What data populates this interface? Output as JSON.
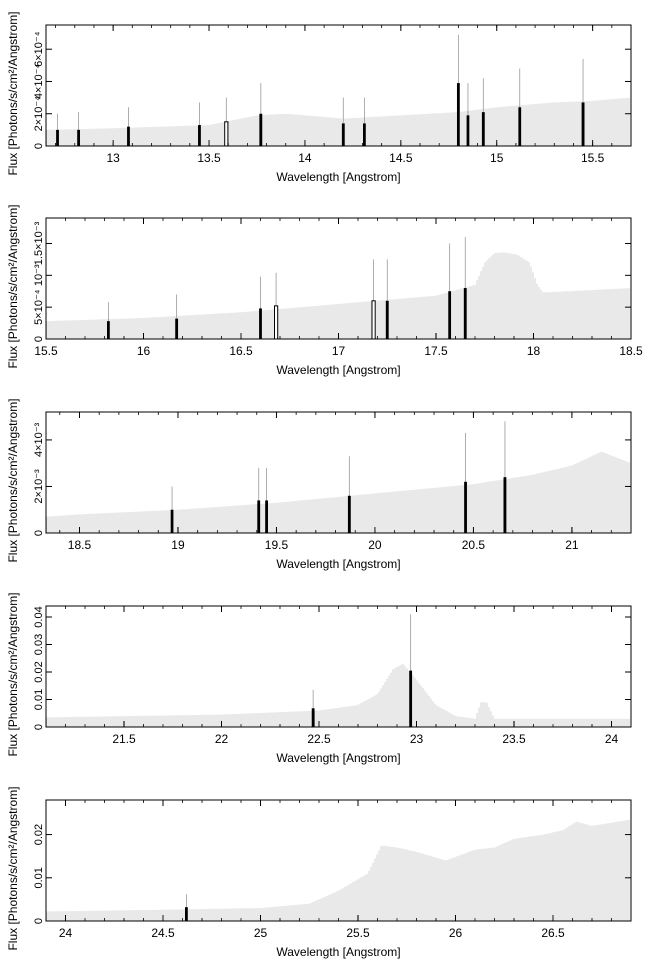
{
  "chart_data": [
    {
      "type": "bar",
      "xlabel": "Wavelength [Angstrom]",
      "ylabel": "Flux [Photons/s/cm²/Angstrom]",
      "xlim": [
        12.65,
        15.7
      ],
      "ylim": [
        0,
        0.00075
      ],
      "xticks": [
        13,
        13.5,
        14,
        14.5,
        15,
        15.5
      ],
      "xticklabels": [
        "13",
        "13.5",
        "14",
        "14.5",
        "15",
        "15.5"
      ],
      "yticks": [
        0,
        0.0002,
        0.0004,
        0.0006
      ],
      "yticklabels": [
        "0",
        "2×10⁻⁴",
        "4×10⁻⁴",
        "6×10⁻⁴"
      ],
      "continuum": {
        "x": [
          12.65,
          13.0,
          13.5,
          13.75,
          13.9,
          14.2,
          14.5,
          14.8,
          15.0,
          15.3,
          15.5,
          15.7
        ],
        "y": [
          0.0001,
          0.00011,
          0.00013,
          0.00019,
          0.0002,
          0.00017,
          0.00019,
          0.00021,
          0.00024,
          0.00027,
          0.00028,
          0.0003
        ]
      },
      "lines": [
        {
          "x": 12.71,
          "y": 0.0001,
          "err": 0.0002,
          "hollow": false
        },
        {
          "x": 12.82,
          "y": 0.0001,
          "err": 0.00021,
          "hollow": false
        },
        {
          "x": 13.08,
          "y": 0.00012,
          "err": 0.00024,
          "hollow": false
        },
        {
          "x": 13.45,
          "y": 0.00013,
          "err": 0.00027,
          "hollow": false
        },
        {
          "x": 13.59,
          "y": 0.00015,
          "err": 0.0003,
          "hollow": true
        },
        {
          "x": 13.77,
          "y": 0.0002,
          "err": 0.00039,
          "hollow": false
        },
        {
          "x": 14.2,
          "y": 0.00014,
          "err": 0.0003,
          "hollow": false
        },
        {
          "x": 14.31,
          "y": 0.00014,
          "err": 0.0003,
          "hollow": false
        },
        {
          "x": 14.8,
          "y": 0.00039,
          "err": 0.00069,
          "hollow": false
        },
        {
          "x": 14.85,
          "y": 0.00019,
          "err": 0.00039,
          "hollow": false
        },
        {
          "x": 14.93,
          "y": 0.00021,
          "err": 0.00042,
          "hollow": false
        },
        {
          "x": 15.12,
          "y": 0.00024,
          "err": 0.00048,
          "hollow": false
        },
        {
          "x": 15.45,
          "y": 0.00027,
          "err": 0.00054,
          "hollow": false
        }
      ]
    },
    {
      "type": "bar",
      "xlabel": "Wavelength [Angstrom]",
      "ylabel": "Flux [Photons/s/cm²/Angstrom]",
      "xlim": [
        15.5,
        18.5
      ],
      "ylim": [
        0,
        0.0019
      ],
      "xticks": [
        15.5,
        16,
        16.5,
        17,
        17.5,
        18,
        18.5
      ],
      "xticklabels": [
        "15.5",
        "16",
        "16.5",
        "17",
        "17.5",
        "18",
        "18.5"
      ],
      "yticks": [
        0,
        0.0005,
        0.001,
        0.0015
      ],
      "yticklabels": [
        "0",
        "5×10⁻⁴",
        "10⁻³",
        "1.5×10⁻³"
      ],
      "continuum": {
        "x": [
          15.5,
          16.0,
          16.5,
          17.0,
          17.5,
          17.7,
          17.75,
          17.8,
          17.85,
          17.92,
          17.98,
          18.02,
          18.05,
          18.5
        ],
        "y": [
          0.00028,
          0.00033,
          0.00042,
          0.00055,
          0.00068,
          0.00085,
          0.0012,
          0.00135,
          0.00136,
          0.00132,
          0.0012,
          0.00085,
          0.00073,
          0.0008
        ]
      },
      "lines": [
        {
          "x": 15.82,
          "y": 0.00028,
          "err": 0.00058,
          "hollow": false
        },
        {
          "x": 16.17,
          "y": 0.00032,
          "err": 0.0007,
          "hollow": false
        },
        {
          "x": 16.6,
          "y": 0.00048,
          "err": 0.00098,
          "hollow": false
        },
        {
          "x": 16.68,
          "y": 0.00052,
          "err": 0.00104,
          "hollow": true
        },
        {
          "x": 17.18,
          "y": 0.0006,
          "err": 0.00125,
          "hollow": true
        },
        {
          "x": 17.25,
          "y": 0.0006,
          "err": 0.00125,
          "hollow": false
        },
        {
          "x": 17.57,
          "y": 0.00075,
          "err": 0.0015,
          "hollow": false
        },
        {
          "x": 17.65,
          "y": 0.0008,
          "err": 0.0016,
          "hollow": false
        }
      ]
    },
    {
      "type": "bar",
      "xlabel": "Wavelength [Angstrom]",
      "ylabel": "Flux [Photons/s/cm²/Angstrom]",
      "xlim": [
        18.33,
        21.3
      ],
      "ylim": [
        0,
        0.0052
      ],
      "xticks": [
        18.5,
        19,
        19.5,
        20,
        20.5,
        21
      ],
      "xticklabels": [
        "18.5",
        "19",
        "19.5",
        "20",
        "20.5",
        "21"
      ],
      "yticks": [
        0,
        0.002,
        0.004
      ],
      "yticklabels": [
        "0",
        "2×10⁻³",
        "4×10⁻³"
      ],
      "continuum": {
        "x": [
          18.33,
          18.5,
          19.0,
          19.5,
          20.0,
          20.5,
          20.8,
          21.0,
          21.15,
          21.3
        ],
        "y": [
          0.0007,
          0.0008,
          0.001,
          0.0013,
          0.0017,
          0.0021,
          0.0025,
          0.0029,
          0.0035,
          0.003
        ]
      },
      "lines": [
        {
          "x": 18.97,
          "y": 0.001,
          "err": 0.002,
          "hollow": false
        },
        {
          "x": 19.41,
          "y": 0.0014,
          "err": 0.0028,
          "hollow": false
        },
        {
          "x": 19.45,
          "y": 0.0014,
          "err": 0.0028,
          "hollow": false
        },
        {
          "x": 19.87,
          "y": 0.0016,
          "err": 0.0033,
          "hollow": false
        },
        {
          "x": 20.46,
          "y": 0.0022,
          "err": 0.0043,
          "hollow": false
        },
        {
          "x": 20.66,
          "y": 0.0024,
          "err": 0.0048,
          "hollow": false
        }
      ]
    },
    {
      "type": "bar",
      "xlabel": "Wavelength [Angstrom]",
      "ylabel": "Flux [Photons/s/cm²/Angstrom]",
      "xlim": [
        21.1,
        24.1
      ],
      "ylim": [
        0,
        0.044
      ],
      "xticks": [
        21.5,
        22,
        22.5,
        23,
        23.5,
        24
      ],
      "xticklabels": [
        "21.5",
        "22",
        "22.5",
        "23",
        "23.5",
        "24"
      ],
      "yticks": [
        0,
        0.01,
        0.02,
        0.03,
        0.04
      ],
      "yticklabels": [
        "0",
        "0.01",
        "0.02",
        "0.03",
        "0.04"
      ],
      "continuum": {
        "x": [
          21.1,
          22.0,
          22.5,
          22.7,
          22.8,
          22.88,
          22.93,
          22.98,
          23.1,
          23.2,
          23.3,
          23.33,
          23.36,
          23.4,
          24.1
        ],
        "y": [
          0.0035,
          0.0045,
          0.006,
          0.008,
          0.012,
          0.021,
          0.023,
          0.019,
          0.008,
          0.004,
          0.003,
          0.009,
          0.009,
          0.003,
          0.003
        ]
      },
      "lines": [
        {
          "x": 22.47,
          "y": 0.0068,
          "err": 0.0135,
          "hollow": false
        },
        {
          "x": 22.97,
          "y": 0.0205,
          "err": 0.041,
          "hollow": false
        }
      ]
    },
    {
      "type": "bar",
      "xlabel": "Wavelength [Angstrom]",
      "ylabel": "Flux [Photons/s/cm²/Angstrom]",
      "xlim": [
        23.9,
        26.9
      ],
      "ylim": [
        0,
        0.028
      ],
      "xticks": [
        24,
        24.5,
        25,
        25.5,
        26,
        26.5
      ],
      "xticklabels": [
        "24",
        "24.5",
        "25",
        "25.5",
        "26",
        "26.5"
      ],
      "yticks": [
        0,
        0.01,
        0.02
      ],
      "yticklabels": [
        "0",
        "0.01",
        "0.02"
      ],
      "continuum": {
        "x": [
          23.9,
          24.5,
          25.0,
          25.25,
          25.4,
          25.55,
          25.62,
          25.7,
          25.8,
          25.95,
          26.1,
          26.2,
          26.3,
          26.45,
          26.55,
          26.62,
          26.7,
          26.9
        ],
        "y": [
          0.0022,
          0.0026,
          0.003,
          0.004,
          0.007,
          0.011,
          0.0175,
          0.017,
          0.016,
          0.014,
          0.0165,
          0.017,
          0.019,
          0.02,
          0.021,
          0.023,
          0.022,
          0.0235
        ]
      },
      "lines": [
        {
          "x": 24.62,
          "y": 0.0032,
          "err": 0.0062,
          "hollow": false
        }
      ]
    }
  ]
}
